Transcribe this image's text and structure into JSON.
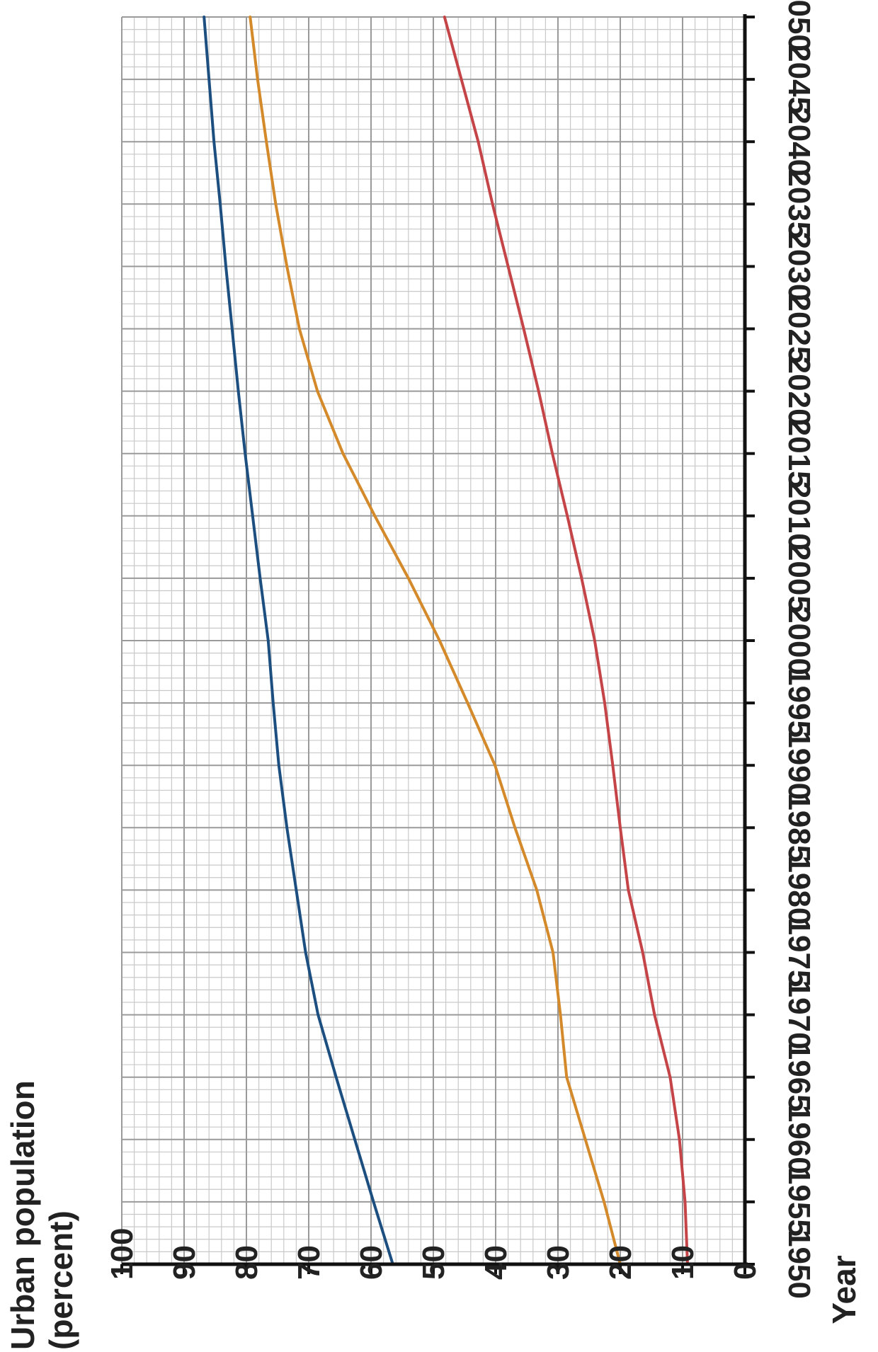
{
  "chart_data": {
    "type": "line",
    "orientation": "rotated-90-clockwise",
    "title": "",
    "ylabel_lines": [
      "Urban population",
      "(percent)"
    ],
    "xlabel": "Year",
    "xlim": [
      1950,
      2050
    ],
    "ylim": [
      0,
      100
    ],
    "xticks": [
      1950,
      1955,
      1960,
      1965,
      1970,
      1975,
      1980,
      1985,
      1990,
      1995,
      2000,
      2005,
      2010,
      2015,
      2020,
      2025,
      2030,
      2035,
      2040,
      2045,
      2050
    ],
    "yticks": [
      0,
      10,
      20,
      30,
      40,
      50,
      60,
      70,
      80,
      90,
      100
    ],
    "grid": true,
    "minor_grid": "x every 1 year, y every 2 percent",
    "series": [
      {
        "color": "#1c4f80",
        "x": [
          1950,
          1955,
          1960,
          1965,
          1970,
          1975,
          1980,
          1985,
          1990,
          1995,
          2000,
          2005,
          2010,
          2015,
          2020,
          2025,
          2030,
          2035,
          2040,
          2045,
          2050
        ],
        "values": [
          56.5,
          59.6,
          62.6,
          65.6,
          68.5,
          70.5,
          72.0,
          73.5,
          74.8,
          75.7,
          76.5,
          77.8,
          79.0,
          80.2,
          81.3,
          82.3,
          83.3,
          84.2,
          85.2,
          86.0,
          86.8
        ]
      },
      {
        "color": "#d48a2a",
        "x": [
          1950,
          1955,
          1960,
          1965,
          1970,
          1975,
          1980,
          1985,
          1990,
          1995,
          2000,
          2005,
          2010,
          2015,
          2020,
          2025,
          2030,
          2035,
          2040,
          2045,
          2050
        ],
        "values": [
          20.0,
          22.6,
          25.6,
          28.6,
          29.6,
          30.8,
          33.4,
          36.9,
          40.1,
          44.5,
          49.0,
          54.0,
          59.4,
          64.5,
          68.6,
          71.5,
          73.5,
          75.3,
          76.8,
          78.2,
          79.4
        ]
      },
      {
        "color": "#c44447",
        "x": [
          1950,
          1955,
          1960,
          1965,
          1970,
          1975,
          1980,
          1985,
          1990,
          1995,
          2000,
          2005,
          2010,
          2015,
          2020,
          2025,
          2030,
          2035,
          2040,
          2045,
          2050
        ],
        "values": [
          9.2,
          9.6,
          10.5,
          12.0,
          14.5,
          16.4,
          18.7,
          20.0,
          21.2,
          22.5,
          24.1,
          26.2,
          28.5,
          30.9,
          33.1,
          35.5,
          38.0,
          40.5,
          42.8,
          45.5,
          48.2
        ]
      }
    ]
  }
}
